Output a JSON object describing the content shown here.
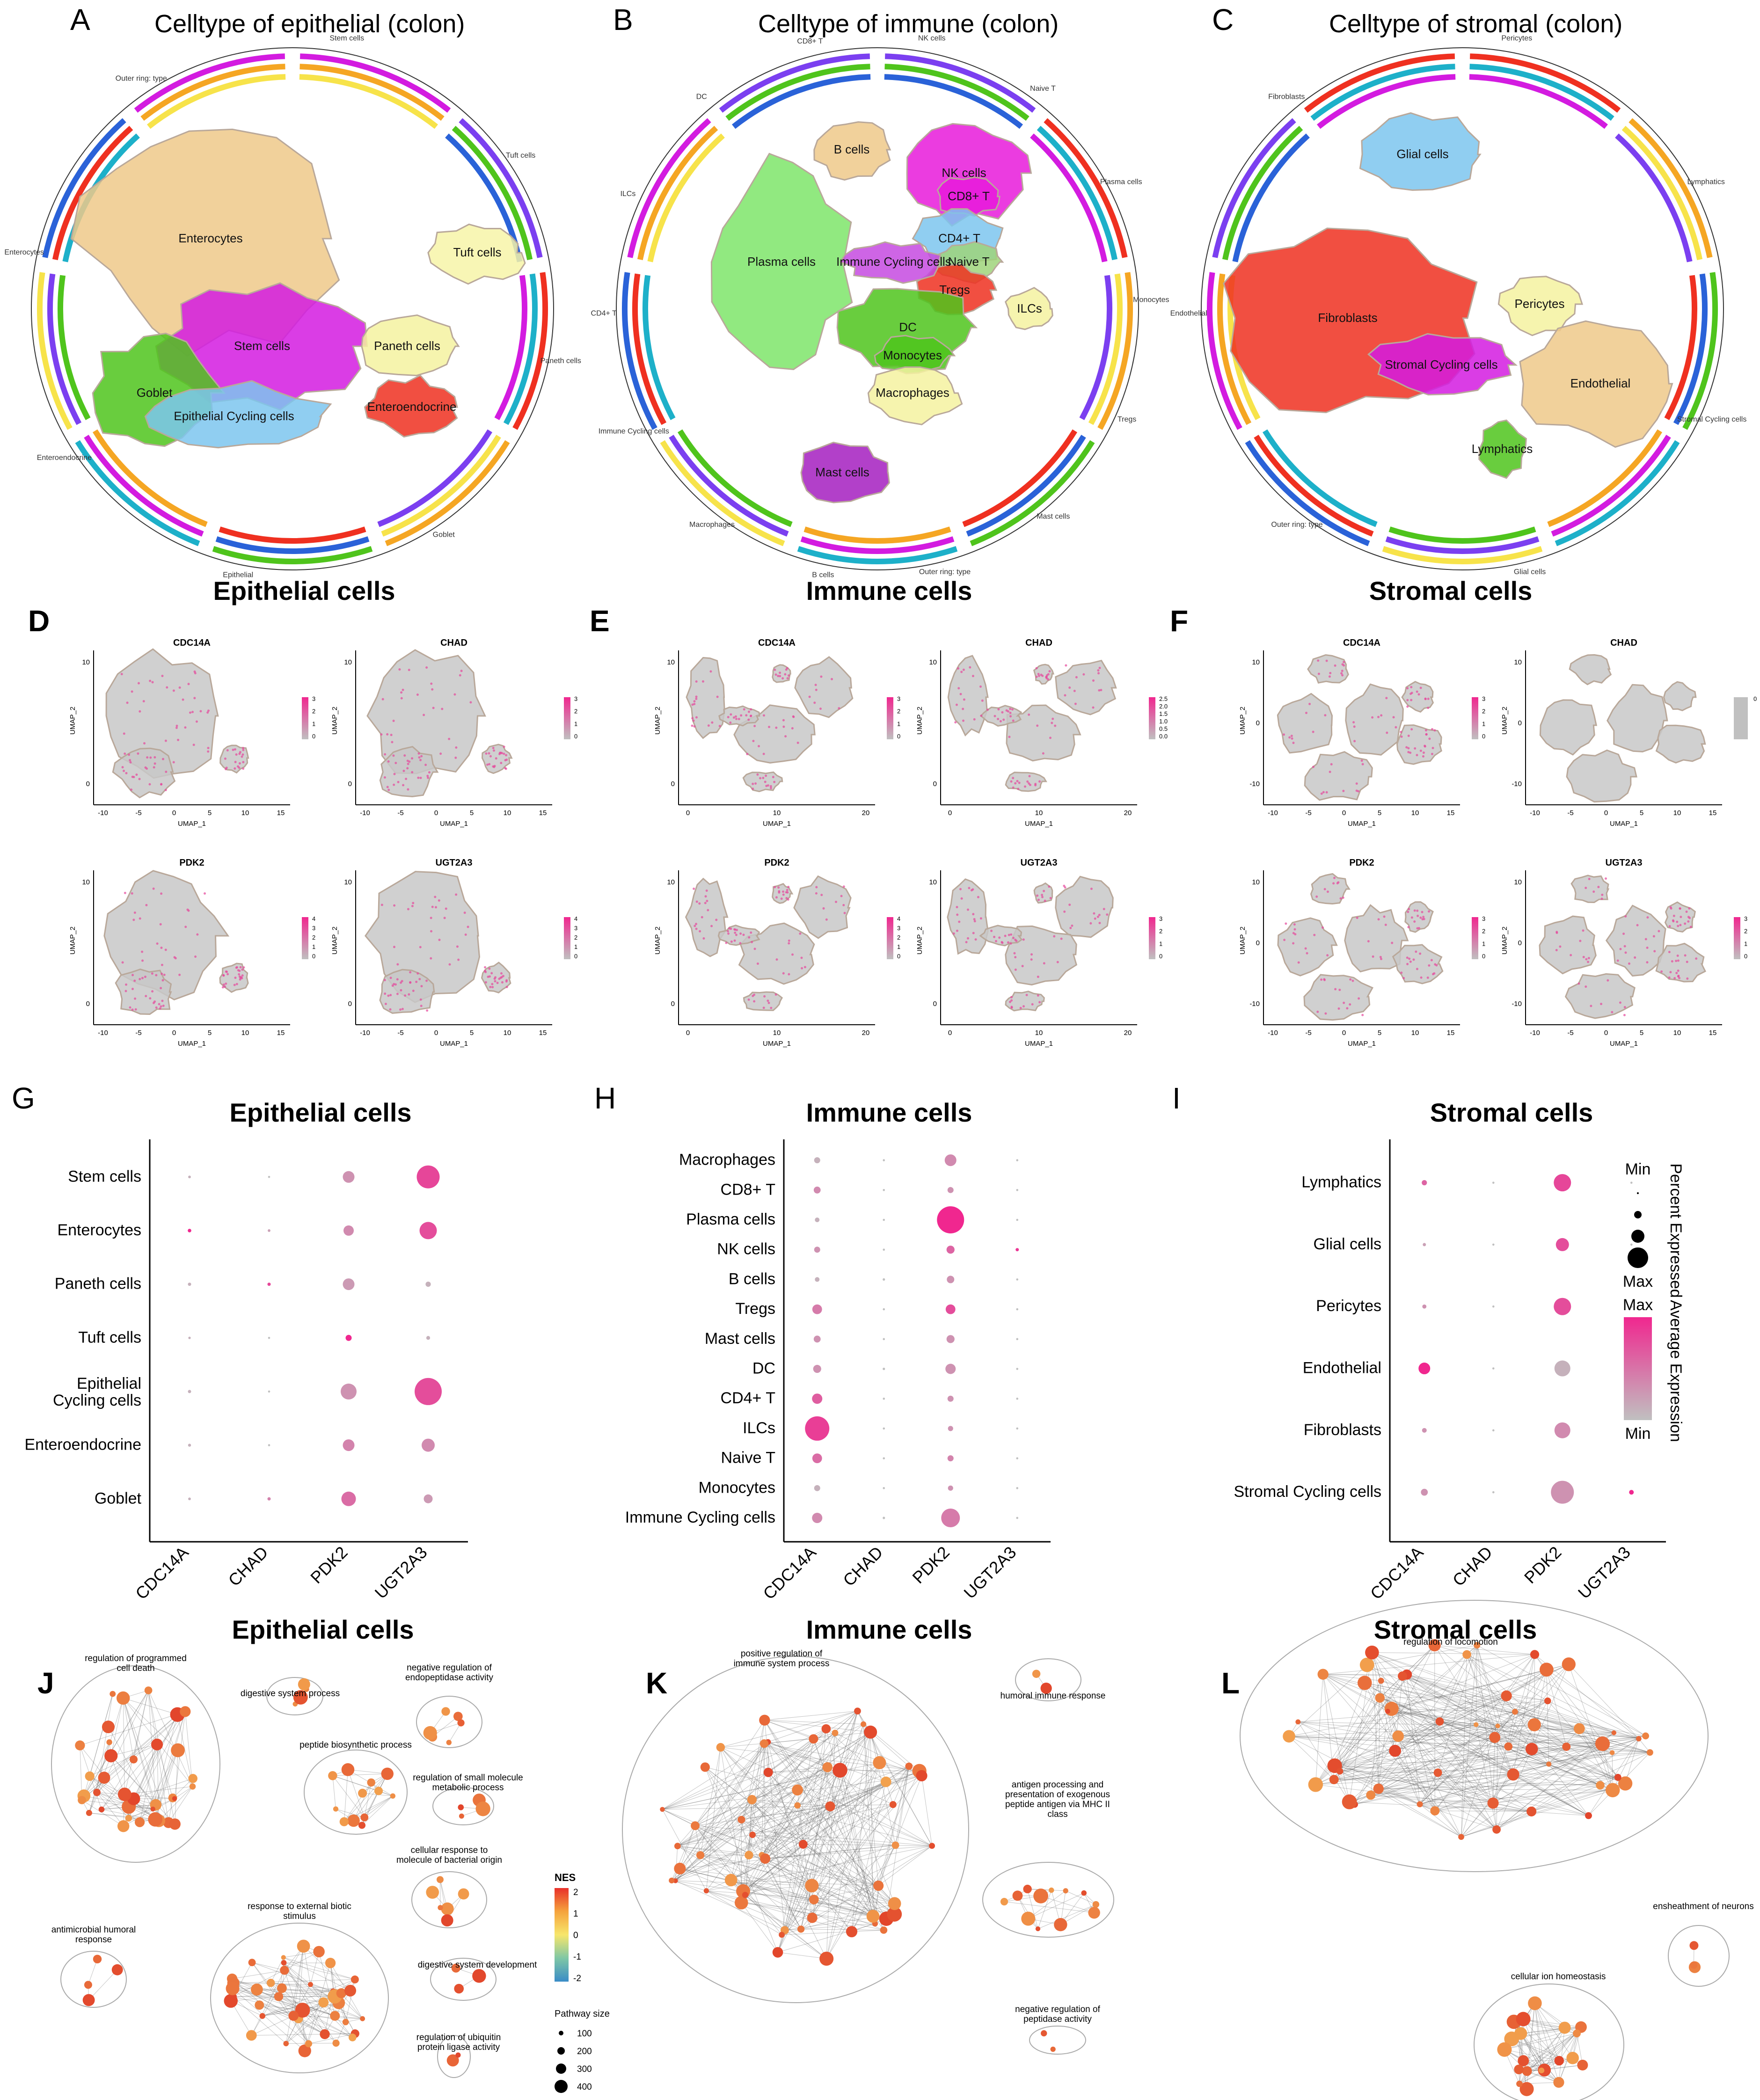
{
  "row1": [
    {
      "letter": "A",
      "title": "Celltype of epithelial (colon)",
      "clusters": [
        {
          "name": "Enterocytes",
          "color": "#eec98a"
        },
        {
          "name": "Stem cells",
          "color": "#d31be0"
        },
        {
          "name": "Goblet",
          "color": "#4fc41c"
        },
        {
          "name": "Epithelial Cycling cells",
          "color": "#7cc6ee"
        },
        {
          "name": "Paneth cells",
          "color": "#f5f2a0"
        },
        {
          "name": "Enteroendocrine",
          "color": "#ef3020"
        },
        {
          "name": "Tuft cells",
          "color": "#f7f4a8"
        }
      ],
      "ring_labels": [
        "Stem cells",
        "Tuft cells",
        "Paneth cells",
        "Goblet",
        "Epithelial",
        "Enteroendocrine",
        "Enterocytes",
        "Outer ring: type"
      ]
    },
    {
      "letter": "B",
      "title": "Celltype of immune (colon)",
      "clusters": [
        {
          "name": "Plasma cells",
          "color": "#7ee56a"
        },
        {
          "name": "B cells",
          "color": "#eec98a"
        },
        {
          "name": "NK cells",
          "color": "#e81adb"
        },
        {
          "name": "CD8+ T",
          "color": "#e81adb"
        },
        {
          "name": "CD4+ T",
          "color": "#7cc6ee"
        },
        {
          "name": "Naive T",
          "color": "#9fd37a"
        },
        {
          "name": "Tregs",
          "color": "#ef3020"
        },
        {
          "name": "ILCs",
          "color": "#f5f2a0"
        },
        {
          "name": "Immune Cycling cells",
          "color": "#c64ae0"
        },
        {
          "name": "DC",
          "color": "#4fc41c"
        },
        {
          "name": "Monocytes",
          "color": "#4fc41c"
        },
        {
          "name": "Macrophages",
          "color": "#f5f2a0"
        },
        {
          "name": "Mast cells",
          "color": "#a41fc0"
        }
      ],
      "ring_labels": [
        "NK cells",
        "Naive T",
        "Plasma cells",
        "Monocytes",
        "Tregs",
        "Mast cells",
        "Outer ring: type",
        "B cells",
        "Macrophages",
        "Immune Cycling cells",
        "CD4+ T",
        "ILCs",
        "DC",
        "CD8+ T"
      ]
    },
    {
      "letter": "C",
      "title": "Celltype of stromal (colon)",
      "clusters": [
        {
          "name": "Glial cells",
          "color": "#7cc6ee"
        },
        {
          "name": "Fibroblasts",
          "color": "#ef3020"
        },
        {
          "name": "Stromal Cycling cells",
          "color": "#d31be0"
        },
        {
          "name": "Pericytes",
          "color": "#f5f2a0"
        },
        {
          "name": "Endothelial",
          "color": "#eec98a"
        },
        {
          "name": "Lymphatics",
          "color": "#4fc41c"
        }
      ],
      "ring_labels": [
        "Pericytes",
        "Lymphatics",
        "Stromal Cycling cells",
        "Glial cells",
        "Outer ring: type",
        "Endothelial",
        "Fibroblasts"
      ]
    }
  ],
  "row2": [
    {
      "letter": "D",
      "title": "Epithelial cells",
      "plots": [
        {
          "gene": "CDC14A",
          "scale": [
            "3",
            "2",
            "1",
            "0"
          ]
        },
        {
          "gene": "CHAD",
          "scale": [
            "3",
            "2",
            "1",
            "0"
          ]
        },
        {
          "gene": "PDK2",
          "scale": [
            "4",
            "3",
            "2",
            "1",
            "0"
          ]
        },
        {
          "gene": "UGT2A3",
          "scale": [
            "4",
            "3",
            "2",
            "1",
            "0"
          ]
        }
      ],
      "xticks": [
        "-10",
        "-5",
        "0",
        "5",
        "10",
        "15"
      ],
      "yticks": [
        "10",
        "0"
      ]
    },
    {
      "letter": "E",
      "title": "Immune cells",
      "plots": [
        {
          "gene": "CDC14A",
          "scale": [
            "3",
            "2",
            "1",
            "0"
          ]
        },
        {
          "gene": "CHAD",
          "scale": [
            "2.5",
            "2.0",
            "1.5",
            "1.0",
            "0.5",
            "0.0"
          ]
        },
        {
          "gene": "PDK2",
          "scale": [
            "4",
            "3",
            "2",
            "1",
            "0"
          ]
        },
        {
          "gene": "UGT2A3",
          "scale": [
            "3",
            "2",
            "1",
            "0"
          ]
        }
      ],
      "xticks": [
        "0",
        "10",
        "20"
      ],
      "yticks": [
        "10",
        "0"
      ]
    },
    {
      "letter": "F",
      "title": "Stromal cells",
      "plots": [
        {
          "gene": "CDC14A",
          "scale": [
            "3",
            "2",
            "1",
            "0"
          ]
        },
        {
          "gene": "CHAD",
          "scale": [
            "0"
          ]
        },
        {
          "gene": "PDK2",
          "scale": [
            "3",
            "2",
            "1",
            "0"
          ]
        },
        {
          "gene": "UGT2A3",
          "scale": [
            "3",
            "2",
            "1",
            "0"
          ]
        }
      ],
      "xticks": [
        "-10",
        "-5",
        "0",
        "5",
        "10",
        "15"
      ],
      "yticks": [
        "10",
        "0",
        "-10"
      ]
    }
  ],
  "axis": {
    "x": "UMAP_1",
    "y": "UMAP_2"
  },
  "chart_data": [
    {
      "type": "scatter",
      "title": "Epithelial cells",
      "letter": "G",
      "genes": [
        "CDC14A",
        "CHAD",
        "PDK2",
        "UGT2A3"
      ],
      "cells": [
        "Stem cells",
        "Enterocytes",
        "Paneth cells",
        "Tuft cells",
        "Epithelial Cycling cells",
        "Enteroendocrine",
        "Goblet"
      ],
      "pct": [
        [
          0.03,
          0.01,
          0.35,
          0.75
        ],
        [
          0.06,
          0.03,
          0.3,
          0.55
        ],
        [
          0.05,
          0.05,
          0.35,
          0.12
        ],
        [
          0.02,
          0.01,
          0.15,
          0.07
        ],
        [
          0.05,
          0.01,
          0.5,
          0.9
        ],
        [
          0.04,
          0.01,
          0.35,
          0.4
        ],
        [
          0.03,
          0.05,
          0.45,
          0.25
        ]
      ],
      "avg": [
        [
          0.1,
          0,
          0.3,
          0.8
        ],
        [
          1.0,
          0.2,
          0.35,
          0.75
        ],
        [
          0.1,
          0.8,
          0.25,
          0.1
        ],
        [
          0.1,
          0,
          1.0,
          0.1
        ],
        [
          0.1,
          0,
          0.3,
          0.75
        ],
        [
          0.1,
          0,
          0.4,
          0.35
        ],
        [
          0.1,
          0.4,
          0.55,
          0.25
        ]
      ]
    },
    {
      "type": "scatter",
      "title": "Immune cells",
      "letter": "H",
      "genes": [
        "CDC14A",
        "CHAD",
        "PDK2",
        "UGT2A3"
      ],
      "cells": [
        "Macrophages",
        "CD8+ T",
        "Plasma cells",
        "NK cells",
        "B cells",
        "Tregs",
        "Mast cells",
        "DC",
        "CD4+ T",
        "ILCs",
        "Naive T",
        "Monocytes",
        "Immune Cycling cells"
      ],
      "pct": [
        [
          0.15,
          0.01,
          0.35,
          0.01
        ],
        [
          0.18,
          0.01,
          0.15,
          0.01
        ],
        [
          0.1,
          0.01,
          0.9,
          0.01
        ],
        [
          0.15,
          0.01,
          0.22,
          0.05
        ],
        [
          0.1,
          0.02,
          0.2,
          0.01
        ],
        [
          0.28,
          0.01,
          0.28,
          0.01
        ],
        [
          0.18,
          0.01,
          0.22,
          0.01
        ],
        [
          0.22,
          0.02,
          0.3,
          0.01
        ],
        [
          0.3,
          0.01,
          0.15,
          0.01
        ],
        [
          0.8,
          0.01,
          0.12,
          0.01
        ],
        [
          0.28,
          0.01,
          0.15,
          0.01
        ],
        [
          0.15,
          0.01,
          0.12,
          0.01
        ],
        [
          0.3,
          0.02,
          0.6,
          0.01
        ]
      ],
      "avg": [
        [
          0.1,
          0,
          0.35,
          0
        ],
        [
          0.35,
          0,
          0.3,
          0
        ],
        [
          0.1,
          0,
          1.0,
          0
        ],
        [
          0.3,
          0,
          0.6,
          0.9
        ],
        [
          0.1,
          0,
          0.3,
          0
        ],
        [
          0.45,
          0,
          0.75,
          0
        ],
        [
          0.3,
          0,
          0.3,
          0
        ],
        [
          0.3,
          0,
          0.3,
          0
        ],
        [
          0.65,
          0,
          0.3,
          0
        ],
        [
          0.85,
          0,
          0.3,
          0
        ],
        [
          0.55,
          0,
          0.4,
          0
        ],
        [
          0.1,
          0,
          0.3,
          0
        ],
        [
          0.35,
          0,
          0.45,
          0
        ]
      ]
    },
    {
      "type": "scatter",
      "title": "Stromal cells",
      "letter": "I",
      "genes": [
        "CDC14A",
        "CHAD",
        "PDK2",
        "UGT2A3"
      ],
      "cells": [
        "Lymphatics",
        "Glial cells",
        "Pericytes",
        "Endothelial",
        "Fibroblasts",
        "Stromal Cycling cells"
      ],
      "pct": [
        [
          0.12,
          0.01,
          0.55,
          0.01
        ],
        [
          0.05,
          0.01,
          0.4,
          0.01
        ],
        [
          0.08,
          0.01,
          0.55,
          0.03
        ],
        [
          0.35,
          0.01,
          0.5,
          0.01
        ],
        [
          0.1,
          0.01,
          0.5,
          0.01
        ],
        [
          0.18,
          0.01,
          0.75,
          0.1
        ]
      ],
      "avg": [
        [
          0.6,
          0,
          0.8,
          0
        ],
        [
          0.2,
          0,
          0.75,
          0
        ],
        [
          0.3,
          0,
          0.75,
          0
        ],
        [
          1.0,
          0,
          0.1,
          0
        ],
        [
          0.3,
          0,
          0.35,
          0
        ],
        [
          0.3,
          0,
          0.3,
          1.0
        ]
      ]
    }
  ],
  "dot_legend": {
    "size_title": "Percent Expressed",
    "min": "Min",
    "max": "Max",
    "color_title": "Average Expression",
    "cmin": "Min",
    "cmax": "Max",
    "low_color": "#c0c0c0",
    "high_color": "#f0278f"
  },
  "row4": [
    {
      "letter": "J",
      "title": "Epithelial cells",
      "clusters": [
        "regulation of programmed cell death",
        "digestive system process",
        "negative regulation of endopeptidase activity",
        "peptide biosynthetic process",
        "regulation of small molecule metabolic process",
        "cellular response to molecule of bacterial origin",
        "antimicrobial humoral response",
        "response to external biotic stimulus",
        "digestive system development",
        "regulation of ubiquitin protein ligase activity"
      ]
    },
    {
      "letter": "K",
      "title": "Immune cells",
      "clusters": [
        "positive regulation of immune system process",
        "humoral immune response",
        "antigen processing and presentation of exogenous peptide antigen via MHC II class",
        "negative regulation of peptidase activity"
      ]
    },
    {
      "letter": "L",
      "title": "Stromal cells",
      "clusters": [
        "regulation of locomotion",
        "ensheathment of neurons",
        "cellular ion homeostasis"
      ]
    }
  ],
  "nes_legend": {
    "title": "NES",
    "ticks": [
      "2",
      "1",
      "0",
      "-1",
      "-2"
    ],
    "size_title": "Pathway size",
    "sizes": [
      "100",
      "200",
      "300",
      "400"
    ]
  }
}
